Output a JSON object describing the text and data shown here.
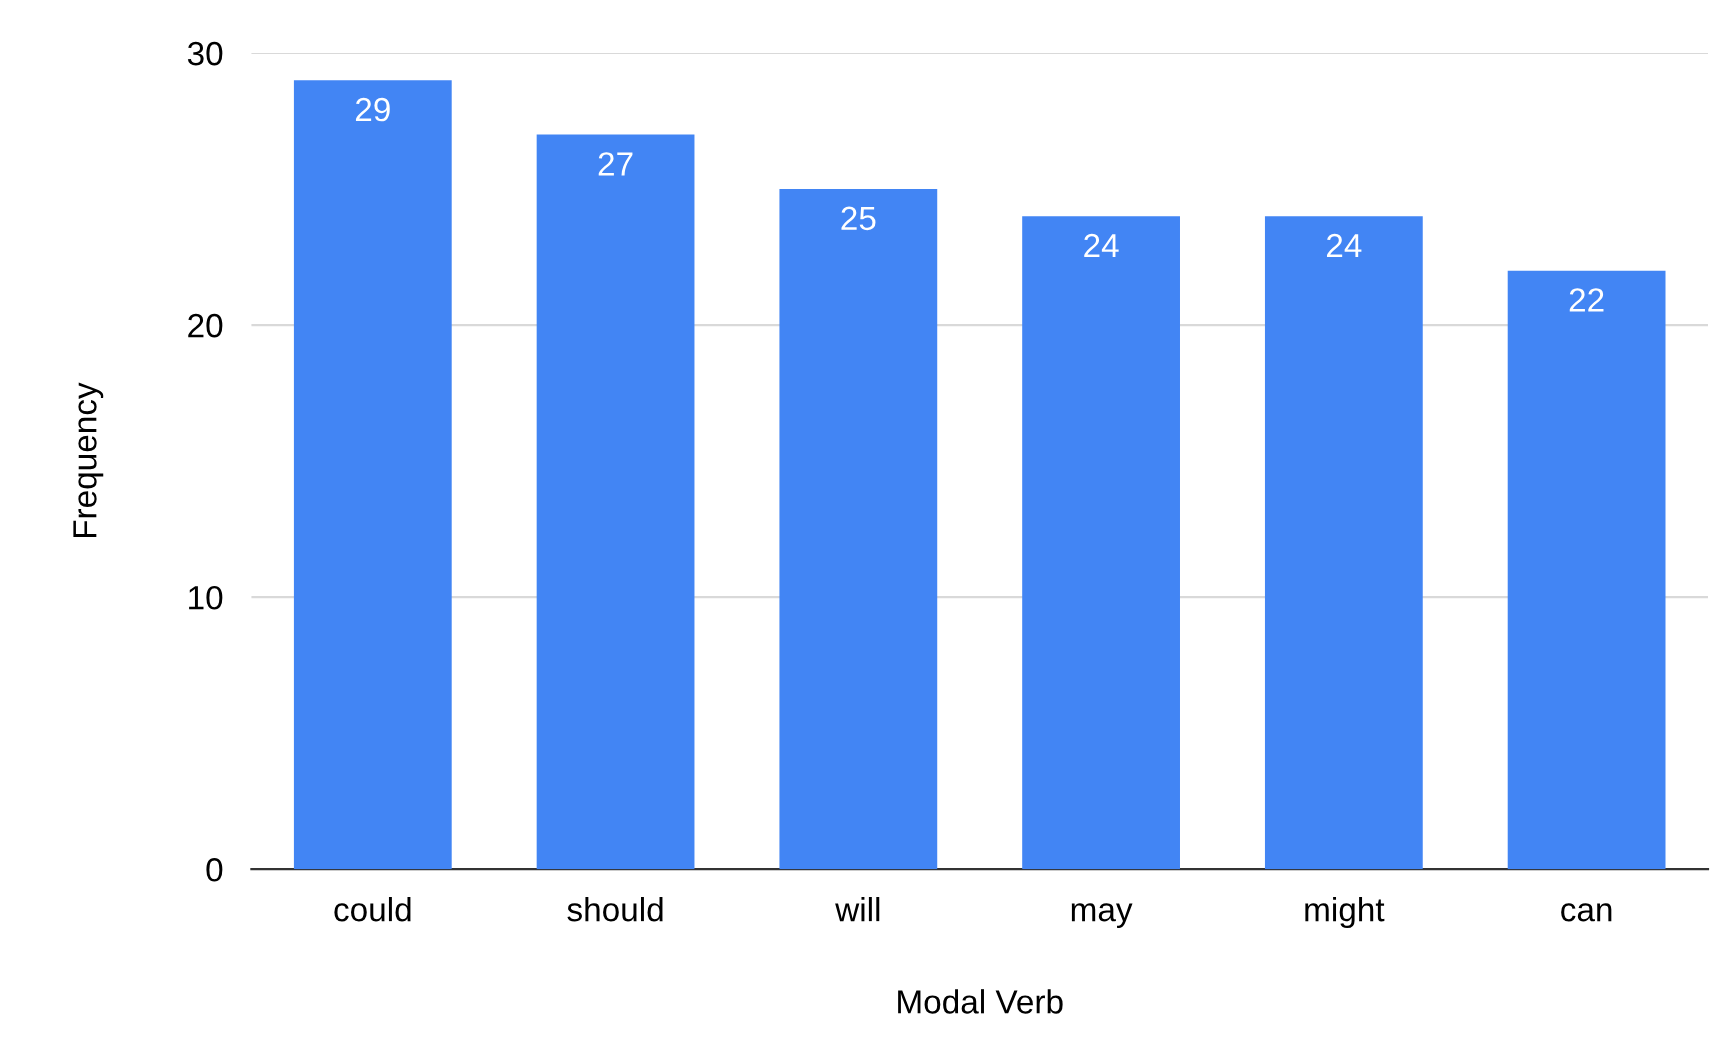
{
  "chart_data": {
    "type": "bar",
    "xlabel": "Modal Verb",
    "ylabel": "Frequency",
    "categories": [
      "could",
      "should",
      "will",
      "may",
      "might",
      "can"
    ],
    "values": [
      29,
      27,
      25,
      24,
      24,
      22
    ],
    "color": "#4285f4",
    "ylim": [
      0,
      30
    ],
    "yticks": [
      0,
      10,
      20,
      30
    ],
    "grid": "y",
    "data_labels": true
  }
}
